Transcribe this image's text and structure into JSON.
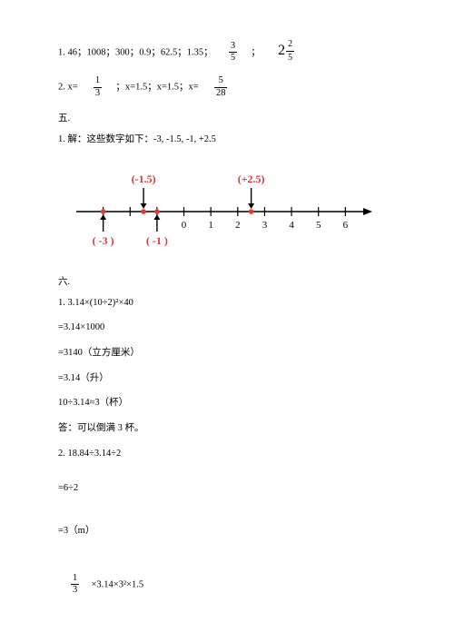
{
  "q1": {
    "prefix": "1. 46；1008；300；0.9；62.5；1.35；",
    "frac_a_num": "3",
    "frac_a_den": "5",
    "sep": "；",
    "mixed_whole": "2",
    "mixed_num": "2",
    "mixed_den": "5"
  },
  "q2": {
    "prefix": "2. x=",
    "frac_a_num": "1",
    "frac_a_den": "3",
    "mid": "；x=1.5；x=1.5；x=",
    "frac_b_num": "5",
    "frac_b_den": "28"
  },
  "sec5": {
    "title": "五.",
    "line1": "1. 解：这些数字如下：-3, -1.5, -1, +2.5"
  },
  "numberline": {
    "min": -4,
    "max": 7,
    "ticks": [
      -3,
      -2,
      -1,
      0,
      1,
      2,
      3,
      4,
      5,
      6
    ],
    "labels": [
      {
        "v": 0,
        "t": "0"
      },
      {
        "v": 1,
        "t": "1"
      },
      {
        "v": 2,
        "t": "2"
      },
      {
        "v": 3,
        "t": "3"
      },
      {
        "v": 4,
        "t": "4"
      },
      {
        "v": 5,
        "t": "5"
      },
      {
        "v": 6,
        "t": "6"
      }
    ],
    "top_annotations": [
      {
        "v": -1.5,
        "text": "(-1.5)"
      },
      {
        "v": 2.5,
        "text": "(+2.5)"
      }
    ],
    "bottom_annotations": [
      {
        "v": -3,
        "text": "( -3 )"
      },
      {
        "v": -1,
        "text": "( -1 )"
      }
    ],
    "points": [
      {
        "v": -3
      },
      {
        "v": -1.5
      },
      {
        "v": -1
      },
      {
        "v": 2.5
      }
    ],
    "axis_color": "#000000",
    "tick_color": "#000000",
    "point_color": "#e53935",
    "arrow_color": "#000000",
    "anno_color_red": "#d73a34",
    "label_color": "#000000",
    "font_size": 11
  },
  "sec6": {
    "title": "六.",
    "l1": "1. 3.14×(10÷2)²×40",
    "l2": "=3.14×1000",
    "l3": "=3140（立方厘米）",
    "l4": "=3.14（升）",
    "l5": "10÷3.14≈3（杯）",
    "l6": "答：可以倒满 3 杯。",
    "l7": "2. 18.84÷3.14÷2",
    "l8": "=6÷2",
    "l9": "=3（m）",
    "frac_num": "1",
    "frac_den": "3",
    "l10_rest": " ×3.14×3²×1.5"
  }
}
